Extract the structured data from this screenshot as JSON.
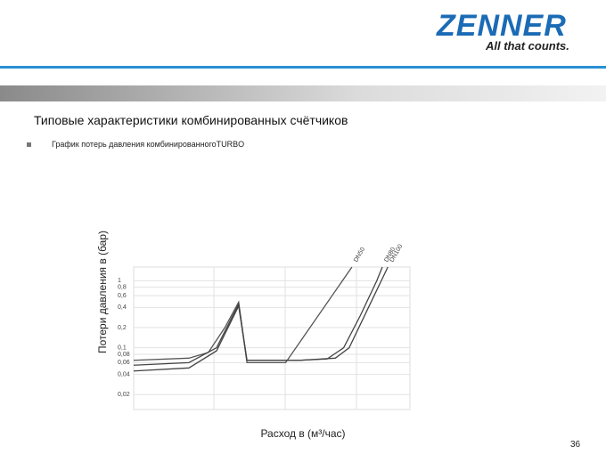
{
  "header": {
    "logo": "ZENNER",
    "tagline": "All that counts."
  },
  "slide": {
    "title": "Типовые характеристики комбинированных счётчиков",
    "bullet": "График потерь давления комбинированногоTURBO",
    "page_number": "36"
  },
  "chart_data": {
    "type": "line",
    "ylabel": "Потери давления в (бар)",
    "xlabel": "Расход в (м³/час)",
    "log_y": true,
    "grid": true,
    "xlim": [
      0,
      100
    ],
    "ylim": [
      0.012,
      1.6
    ],
    "yticks": [
      1,
      {
        "value": 0.8,
        "label": "0,8"
      },
      {
        "value": 0.6,
        "label": "0,6"
      },
      {
        "value": 0.4,
        "label": "0,4"
      },
      {
        "value": 0.2,
        "label": "0,2"
      },
      {
        "value": 0.1,
        "label": "0,1"
      },
      {
        "value": 0.08,
        "label": "0,08"
      },
      {
        "value": 0.06,
        "label": "0,06"
      },
      {
        "value": 0.04,
        "label": "0,04"
      },
      {
        "value": 0.02,
        "label": "0,02"
      }
    ],
    "series": [
      {
        "name": "DN50",
        "color": "#555555",
        "x": [
          0,
          20,
          27,
          33,
          38,
          41,
          55,
          79
        ],
        "values": [
          0.065,
          0.07,
          0.085,
          0.2,
          0.48,
          0.06,
          0.06,
          1.6
        ]
      },
      {
        "name": "DN80",
        "color": "#444444",
        "x": [
          0,
          20,
          30,
          38,
          41,
          60,
          70,
          76,
          82,
          88,
          90
        ],
        "values": [
          0.055,
          0.06,
          0.1,
          0.45,
          0.065,
          0.065,
          0.068,
          0.1,
          0.3,
          1.0,
          1.6
        ]
      },
      {
        "name": "DN100",
        "color": "#444444",
        "x": [
          0,
          20,
          30,
          38,
          41,
          60,
          73,
          78,
          85,
          92
        ],
        "values": [
          0.045,
          0.05,
          0.09,
          0.42,
          0.065,
          0.065,
          0.07,
          0.1,
          0.4,
          1.6
        ]
      }
    ]
  }
}
